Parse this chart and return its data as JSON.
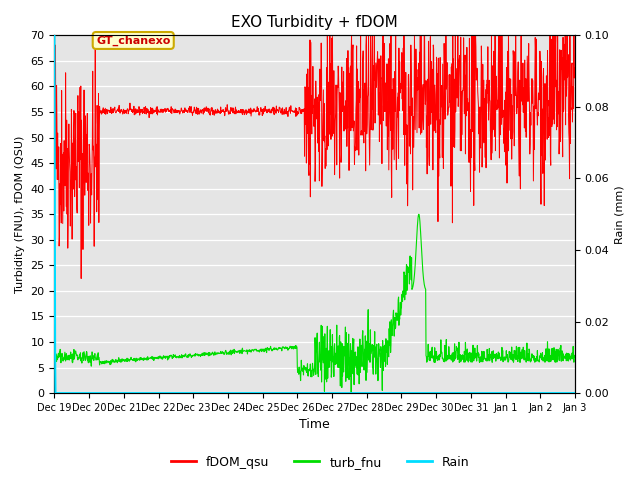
{
  "title": "EXO Turbidity + fDOM",
  "xlabel": "Time",
  "ylabel_left": "Turbidity (FNU), fDOM (QSU)",
  "ylabel_right": "Rain (mm)",
  "ylim_left": [
    0,
    70
  ],
  "ylim_right": [
    0,
    0.1
  ],
  "bg_color": "#e5e5e5",
  "annotation_text": "GT_chanexo",
  "fdom_color": "#ff0000",
  "turb_color": "#00dd00",
  "rain_color": "#00ddff",
  "legend_labels": [
    "fDOM_qsu",
    "turb_fnu",
    "Rain"
  ],
  "tick_labels": [
    "Dec 19",
    "Dec 20",
    "Dec 21",
    "Dec 22",
    "Dec 23",
    "Dec 24",
    "Dec 25",
    "Dec 26",
    "Dec 27",
    "Dec 28",
    "Dec 29",
    "Dec 30",
    "Dec 31",
    "Jan 1",
    "Jan 2",
    "Jan 3"
  ],
  "yticks_left": [
    0,
    5,
    10,
    15,
    20,
    25,
    30,
    35,
    40,
    45,
    50,
    55,
    60,
    65,
    70
  ],
  "yticks_right": [
    0.0,
    0.02,
    0.04,
    0.06,
    0.08,
    0.1
  ]
}
